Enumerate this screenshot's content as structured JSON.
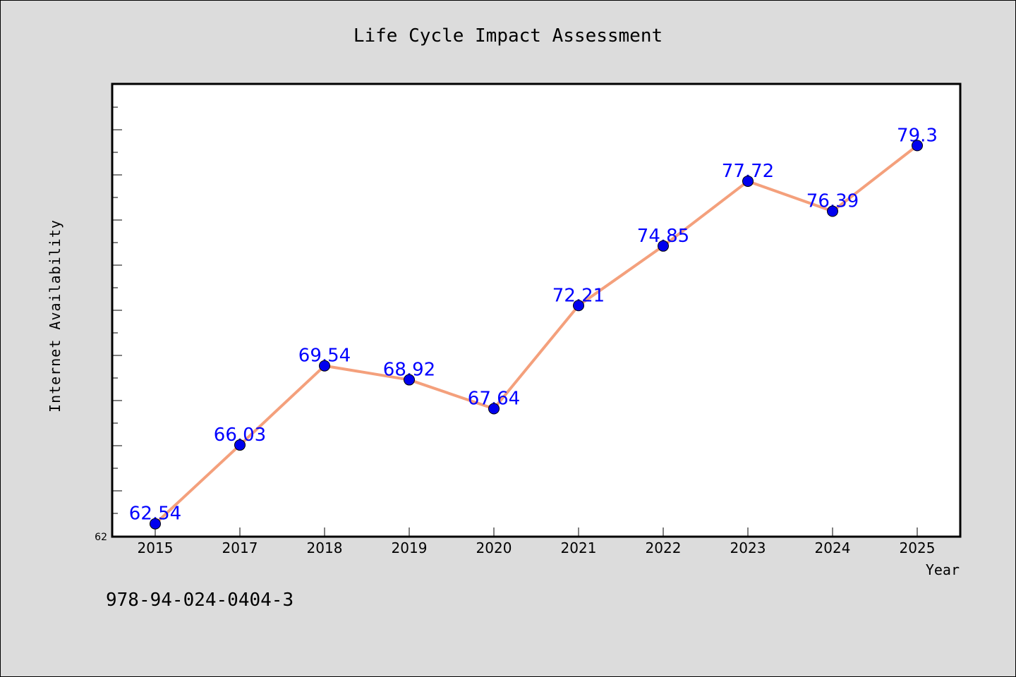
{
  "chart_data": {
    "type": "line",
    "title": "Life Cycle Impact Assessment",
    "xlabel": "Year",
    "ylabel": "Internet Availability",
    "categories": [
      "2015",
      "2017",
      "2018",
      "2019",
      "2020",
      "2021",
      "2022",
      "2023",
      "2024",
      "2025"
    ],
    "series": [
      {
        "values": [
          62.54,
          66.03,
          69.54,
          68.92,
          67.64,
          72.21,
          74.85,
          77.72,
          76.39,
          79.3
        ],
        "data_labels": [
          "62.54",
          "66.03",
          "69.54",
          "68.92",
          "67.64",
          "72.21",
          "74.85",
          "77.72",
          "76.39",
          "79.3"
        ],
        "line_color": "#f4a07c",
        "marker_color": "#0000ee"
      }
    ],
    "ylim": [
      62,
      82
    ],
    "yticks": [
      62
    ],
    "grid": false,
    "legend": "none"
  },
  "footer_text": "978-94-024-0404-3",
  "colors": {
    "background": "#dcdcdc",
    "plot_background": "#ffffff",
    "data_label": "#0000ff"
  }
}
